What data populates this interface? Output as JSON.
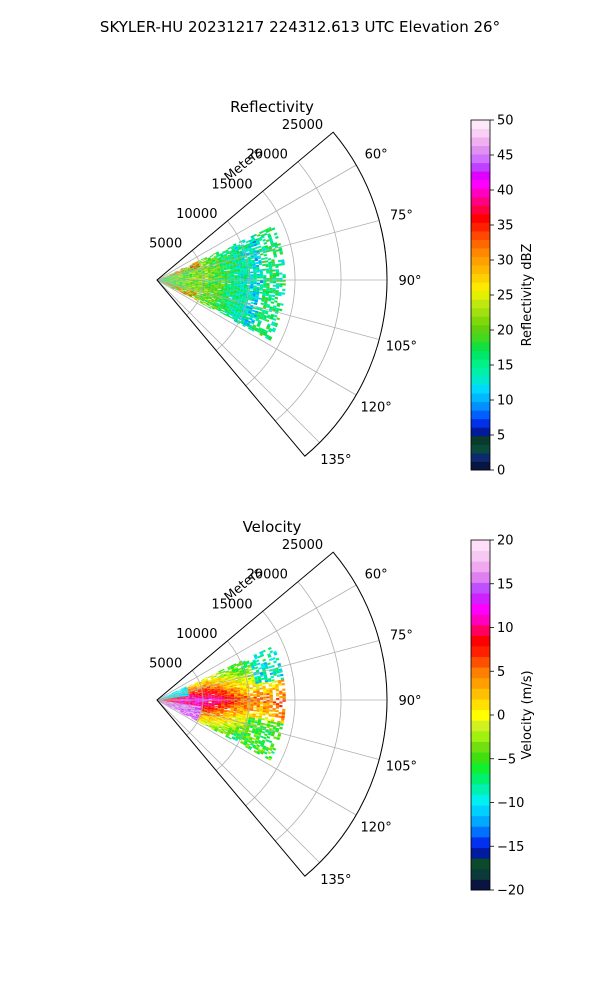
{
  "figure": {
    "suptitle": "SKYLER-HU  20231217  224312.613 UTC Elevation 26°"
  },
  "chart_data": [
    {
      "type": "polar-sector",
      "title": "Reflectivity",
      "radial_label": "Meters",
      "radial_ticks": [
        5000,
        10000,
        15000,
        20000,
        25000
      ],
      "radial_tick_labels": [
        "5000",
        "10000",
        "15000",
        "20000",
        "25000"
      ],
      "rlim": [
        0,
        25000
      ],
      "angle_range_deg": [
        50,
        140
      ],
      "angle_ticks_deg": [
        60,
        75,
        90,
        105,
        120,
        135
      ],
      "angle_tick_labels": [
        "60°",
        "75°",
        "90°",
        "105°",
        "120°",
        "135°"
      ],
      "grid": true,
      "data_extent": {
        "range_max_m": 14000,
        "azimuth_deg": [
          65,
          118
        ]
      },
      "colorbar": {
        "label": "Reflectivity dBZ",
        "vmin": 0,
        "vmax": 50,
        "ticks": [
          0,
          5,
          10,
          15,
          20,
          25,
          30,
          35,
          40,
          45,
          50
        ],
        "tick_labels": [
          "0",
          "5",
          "10",
          "15",
          "20",
          "25",
          "30",
          "35",
          "40",
          "45",
          "50"
        ],
        "colors": [
          "#0a1440",
          "#0d2a6e",
          "#0a4a3a",
          "#0a3a2a",
          "#001a9a",
          "#0030e8",
          "#0060ff",
          "#0090ff",
          "#00b8ff",
          "#00d8ff",
          "#00e8d0",
          "#00f0a8",
          "#00f088",
          "#00e868",
          "#10e040",
          "#40d820",
          "#60d010",
          "#80d808",
          "#a0e010",
          "#c0e810",
          "#e0f000",
          "#ffe800",
          "#ffd000",
          "#ffb800",
          "#ffa000",
          "#ff8800",
          "#ff6800",
          "#ff4800",
          "#ff2000",
          "#ff0000",
          "#ff0040",
          "#ff0080",
          "#ff00c0",
          "#ff00ff",
          "#e000ff",
          "#c040ff",
          "#d070ff",
          "#e090f0",
          "#f0b0f0",
          "#f8d0f4",
          "#fde8fa"
        ]
      }
    },
    {
      "type": "polar-sector",
      "title": "Velocity",
      "radial_label": "Meters",
      "radial_ticks": [
        5000,
        10000,
        15000,
        20000,
        25000
      ],
      "radial_tick_labels": [
        "5000",
        "10000",
        "15000",
        "20000",
        "25000"
      ],
      "rlim": [
        0,
        25000
      ],
      "angle_range_deg": [
        50,
        140
      ],
      "angle_ticks_deg": [
        60,
        75,
        90,
        105,
        120,
        135
      ],
      "angle_tick_labels": [
        "60°",
        "75°",
        "90°",
        "105°",
        "120°",
        "135°"
      ],
      "grid": true,
      "data_extent": {
        "range_max_m": 14000,
        "azimuth_deg": [
          65,
          118
        ]
      },
      "colorbar": {
        "label": "Velocity (m/s)",
        "vmin": -20,
        "vmax": 20,
        "ticks": [
          -20,
          -15,
          -10,
          -5,
          0,
          5,
          10,
          15,
          20
        ],
        "tick_labels": [
          "−20",
          "−15",
          "−10",
          "−5",
          "0",
          "5",
          "10",
          "15",
          "20"
        ],
        "colors": [
          "#0a1440",
          "#0a3a3a",
          "#0a4a2a",
          "#001aa0",
          "#0030f0",
          "#0070ff",
          "#00a8ff",
          "#00d0ff",
          "#00f0f0",
          "#00f0b0",
          "#00f070",
          "#10f030",
          "#40e010",
          "#70e010",
          "#a0f010",
          "#d0f020",
          "#ffff00",
          "#ffe000",
          "#ffc000",
          "#ffa000",
          "#ff8000",
          "#ff5000",
          "#ff2000",
          "#ff0000",
          "#ff0060",
          "#ff00c0",
          "#ff00ff",
          "#d020ff",
          "#c050ff",
          "#e080f0",
          "#f0a8f0",
          "#f8c8f4",
          "#fde0f8"
        ]
      }
    }
  ]
}
